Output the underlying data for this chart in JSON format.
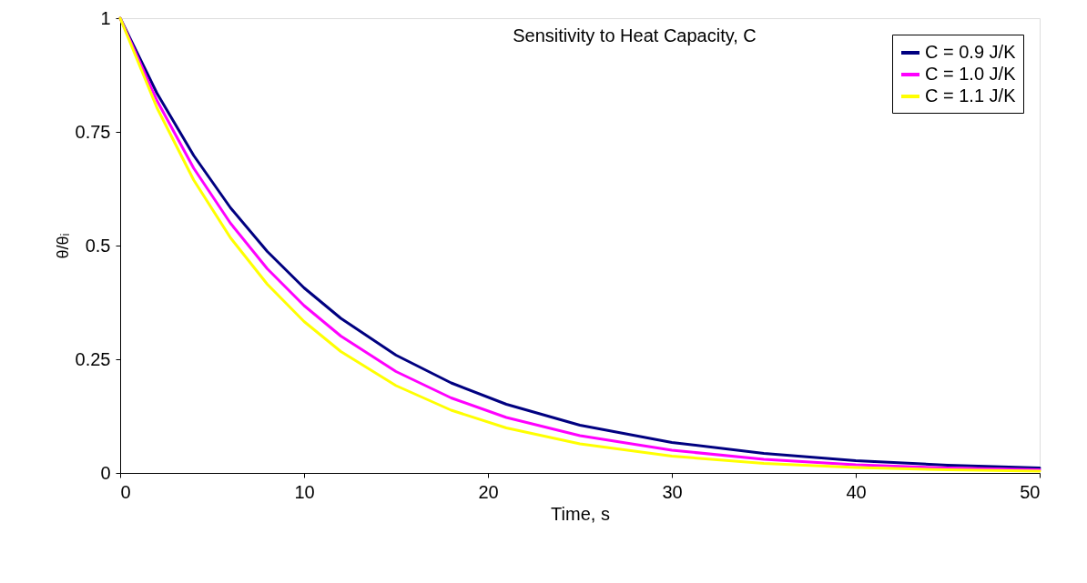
{
  "chart_data": {
    "type": "line",
    "title": "Sensitivity to Heat Capacity, C",
    "xlabel": "Time, s",
    "ylabel": "θ/θᵢ",
    "x": [
      0,
      2,
      4,
      6,
      8,
      10,
      12,
      15,
      18,
      21,
      25,
      30,
      35,
      40,
      45,
      50
    ],
    "series": [
      {
        "name": "C = 0.9 J/K",
        "color": "#000080",
        "values": [
          1,
          0.835,
          0.698,
          0.583,
          0.487,
          0.407,
          0.34,
          0.259,
          0.198,
          0.151,
          0.105,
          0.067,
          0.043,
          0.027,
          0.017,
          0.011
        ]
      },
      {
        "name": "C = 1.0 J/K",
        "color": "#ff00ff",
        "values": [
          1,
          0.819,
          0.67,
          0.549,
          0.449,
          0.368,
          0.301,
          0.223,
          0.165,
          0.122,
          0.082,
          0.05,
          0.03,
          0.018,
          0.011,
          0.007
        ]
      },
      {
        "name": "C = 1.1 J/K",
        "color": "#ffff00",
        "values": [
          1,
          0.803,
          0.644,
          0.517,
          0.415,
          0.333,
          0.267,
          0.192,
          0.138,
          0.099,
          0.064,
          0.037,
          0.021,
          0.012,
          0.007,
          0.004
        ]
      }
    ],
    "xlim": [
      0,
      50
    ],
    "xticks": [
      0,
      10,
      20,
      30,
      40,
      50
    ],
    "ylim": [
      0,
      1
    ],
    "yticks": [
      0,
      0.25,
      0.5,
      0.75,
      1
    ],
    "grid": false,
    "legend": "top right",
    "line_style": "solid"
  }
}
